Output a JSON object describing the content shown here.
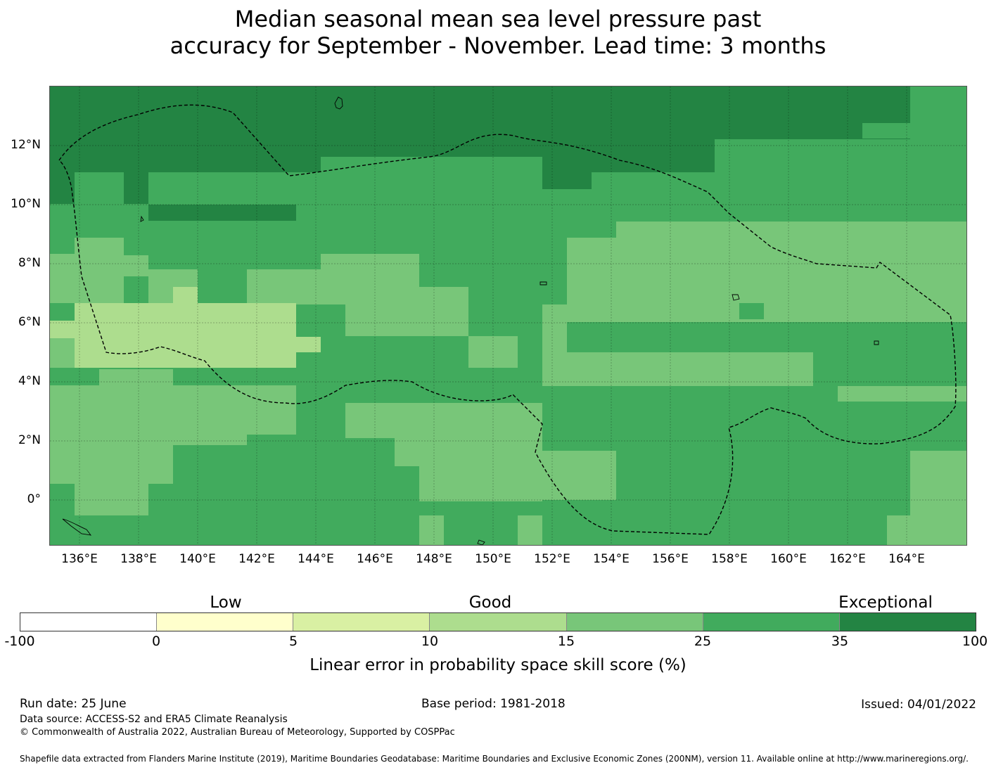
{
  "title": {
    "line1": "Median seasonal mean sea level pressure past",
    "line2": "accuracy for September - November. Lead time: 3 months"
  },
  "map": {
    "lat_labels": [
      "12°N",
      "10°N",
      "8°N",
      "6°N",
      "4°N",
      "2°N",
      "0°"
    ],
    "lon_labels": [
      "136°E",
      "138°E",
      "140°E",
      "142°E",
      "144°E",
      "146°E",
      "148°E",
      "150°E",
      "152°E",
      "154°E",
      "156°E",
      "158°E",
      "160°E",
      "162°E",
      "164°E"
    ],
    "colors": {
      "35-100": "#238443",
      "25-35": "#41ab5d",
      "15-25": "#78c679",
      "10-15": "#addd8e",
      "5-10": "#d9f0a3",
      "0-5": "#ffffcc",
      "-100-0": "#ffffff"
    },
    "eez_boundary": "dashed",
    "land_outline": "#000000"
  },
  "colorbar": {
    "ticks": [
      "-100",
      "0",
      "5",
      "10",
      "15",
      "25",
      "35",
      "100"
    ],
    "segment_colors": [
      "#ffffff",
      "#ffffcc",
      "#d9f0a3",
      "#addd8e",
      "#78c679",
      "#41ab5d",
      "#238443"
    ],
    "categories": [
      "Low",
      "Good",
      "Exceptional"
    ],
    "label": "Linear error in probability space skill score (%)"
  },
  "footer": {
    "run_date": "Run date: 25 June",
    "base_period": "Base period: 1981-2018",
    "issued": "Issued: 04/01/2022",
    "data_source": "Data source: ACCESS-S2 and ERA5 Climate Reanalysis",
    "copyright": "© Commonwealth of Australia 2022, Australian Bureau of Meteorology, Supported by COSPPac",
    "shapefile": "Shapefile data extracted from Flanders Marine Institute (2019), Maritime Boundaries Geodatabase: Maritime Boundaries and Exclusive Economic Zones (200NM), version 11. Available online at http://www.marineregions.org/."
  }
}
